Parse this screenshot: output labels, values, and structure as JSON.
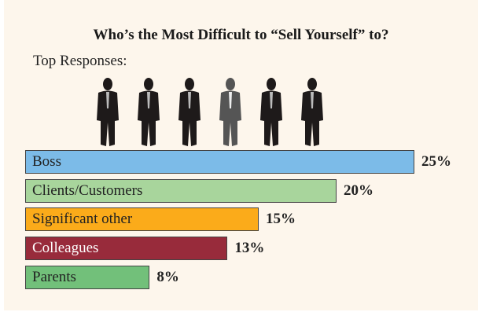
{
  "chart_data": {
    "type": "bar",
    "orientation": "horizontal",
    "title": "Who’s the Most Difficult to “Sell Yourself” to?",
    "subtitle": "Top Responses:",
    "categories": [
      "Boss",
      "Clients/Customers",
      "Significant other",
      "Colleagues",
      "Parents"
    ],
    "values": [
      25,
      20,
      15,
      13,
      8
    ],
    "value_labels": [
      "25%",
      "20%",
      "15%",
      "13%",
      "8%"
    ],
    "colors": [
      "#7cbbe8",
      "#a8d59c",
      "#fbab1a",
      "#982b3b",
      "#72c07a"
    ],
    "label_colors": [
      "#222222",
      "#222222",
      "#222222",
      "#ffffff",
      "#222222"
    ],
    "xlim": [
      0,
      25
    ],
    "grid": false,
    "decoration": "six businessman silhouettes, fourth highlighted grey"
  }
}
